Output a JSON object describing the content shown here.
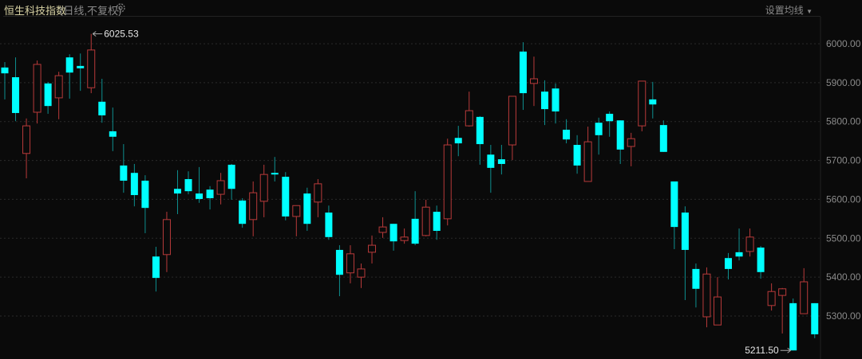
{
  "header": {
    "title": "恒生科技指数",
    "subtitle": "(日线,不复权)",
    "settings_icon": "gear-icon",
    "ma_setting_label": "设置均线",
    "ma_setting_icon": "caret-down-icon"
  },
  "colors": {
    "background": "#0a0a0a",
    "up": "#b83a3a",
    "down": "#00ffff",
    "down_wick": "#0e8f8f",
    "grid": "#2a2a2a",
    "axis_text": "#8a8a8a"
  },
  "chart_data": {
    "type": "candlestick",
    "title": "恒生科技指数",
    "ylim": [
      5200,
      6060
    ],
    "y_ticks": [
      "6000.00",
      "5900.00",
      "5800.00",
      "5700.00",
      "5600.00",
      "5500.00",
      "5400.00",
      "5300.00"
    ],
    "y_tick_values": [
      6000,
      5900,
      5800,
      5700,
      5600,
      5500,
      5400,
      5300
    ],
    "grid": true,
    "axis_position": "right",
    "max_label": "6025.53",
    "min_label": "5211.50",
    "candles": [
      [
        5939,
        5953,
        5857,
        5924
      ],
      [
        5914,
        5965,
        5801,
        5822
      ],
      [
        5718,
        5808,
        5654,
        5789
      ],
      [
        5824,
        5957,
        5795,
        5947
      ],
      [
        5898,
        5902,
        5820,
        5840
      ],
      [
        5861,
        5928,
        5806,
        5918
      ],
      [
        5965,
        5973,
        5859,
        5926
      ],
      [
        5943,
        5975,
        5879,
        5937
      ],
      [
        5887,
        6025.53,
        5873,
        5984
      ],
      [
        5851,
        5910,
        5797,
        5816
      ],
      [
        5775,
        5836,
        5724,
        5761
      ],
      [
        5687,
        5742,
        5617,
        5648
      ],
      [
        5668,
        5691,
        5582,
        5611
      ],
      [
        5648,
        5662,
        5513,
        5578
      ],
      [
        5453,
        5478,
        5363,
        5398
      ],
      [
        5458,
        5568,
        5413,
        5548
      ],
      [
        5627,
        5675,
        5562,
        5615
      ],
      [
        5652,
        5672,
        5613,
        5621
      ],
      [
        5615,
        5683,
        5591,
        5601
      ],
      [
        5625,
        5634,
        5574,
        5603
      ],
      [
        5613,
        5668,
        5587,
        5648
      ],
      [
        5689,
        5691,
        5599,
        5627
      ],
      [
        5597,
        5603,
        5527,
        5537
      ],
      [
        5548,
        5646,
        5505,
        5617
      ],
      [
        5595,
        5689,
        5554,
        5664
      ],
      [
        5668,
        5709,
        5646,
        5666
      ],
      [
        5658,
        5670,
        5546,
        5556
      ],
      [
        5556,
        5584,
        5505,
        5584
      ],
      [
        5615,
        5630,
        5519,
        5537
      ],
      [
        5593,
        5652,
        5554,
        5640
      ],
      [
        5566,
        5584,
        5496,
        5503
      ],
      [
        5470,
        5482,
        5351,
        5406
      ],
      [
        5411,
        5482,
        5384,
        5460
      ],
      [
        5400,
        5435,
        5372,
        5421
      ],
      [
        5464,
        5507,
        5435,
        5482
      ],
      [
        5515,
        5554,
        5501,
        5529
      ],
      [
        5537,
        5537,
        5468,
        5492
      ],
      [
        5494,
        5525,
        5486,
        5503
      ],
      [
        5550,
        5621,
        5482,
        5486
      ],
      [
        5507,
        5599,
        5505,
        5580
      ],
      [
        5568,
        5584,
        5496,
        5519
      ],
      [
        5550,
        5756,
        5533,
        5740
      ],
      [
        5758,
        5789,
        5711,
        5744
      ],
      [
        5789,
        5877,
        5787,
        5828
      ],
      [
        5812,
        5814,
        5689,
        5742
      ],
      [
        5715,
        5740,
        5617,
        5681
      ],
      [
        5703,
        5740,
        5664,
        5691
      ],
      [
        5740,
        5865,
        5701,
        5865
      ],
      [
        5980,
        6004,
        5830,
        5873
      ],
      [
        5898,
        5967,
        5840,
        5910
      ],
      [
        5877,
        5906,
        5791,
        5832
      ],
      [
        5885,
        5898,
        5795,
        5826
      ],
      [
        5779,
        5806,
        5744,
        5754
      ],
      [
        5740,
        5765,
        5666,
        5687
      ],
      [
        5646,
        5787,
        5646,
        5748
      ],
      [
        5797,
        5810,
        5715,
        5765
      ],
      [
        5820,
        5826,
        5761,
        5801
      ],
      [
        5803,
        5803,
        5691,
        5728
      ],
      [
        5736,
        5771,
        5685,
        5756
      ],
      [
        5789,
        5904,
        5775,
        5904
      ],
      [
        5857,
        5902,
        5808,
        5844
      ],
      [
        5791,
        5803,
        5722,
        5722
      ],
      [
        5646,
        5646,
        5472,
        5529
      ],
      [
        5566,
        5582,
        5341,
        5470
      ],
      [
        5421,
        5435,
        5322,
        5370
      ],
      [
        5298,
        5425,
        5271,
        5408
      ],
      [
        5277,
        5400,
        5277,
        5349
      ],
      [
        5449,
        5462,
        5394,
        5421
      ],
      [
        5464,
        5525,
        5443,
        5453
      ],
      [
        5466,
        5525,
        5453,
        5503
      ],
      [
        5476,
        5480,
        5396,
        5413
      ],
      [
        5327,
        5384,
        5314,
        5363
      ],
      [
        5353,
        5372,
        5255,
        5370
      ],
      [
        5333,
        5345,
        5211.5,
        5211.5
      ],
      [
        5306,
        5423,
        5306,
        5388
      ],
      [
        5333,
        5333,
        5243,
        5253
      ]
    ]
  }
}
